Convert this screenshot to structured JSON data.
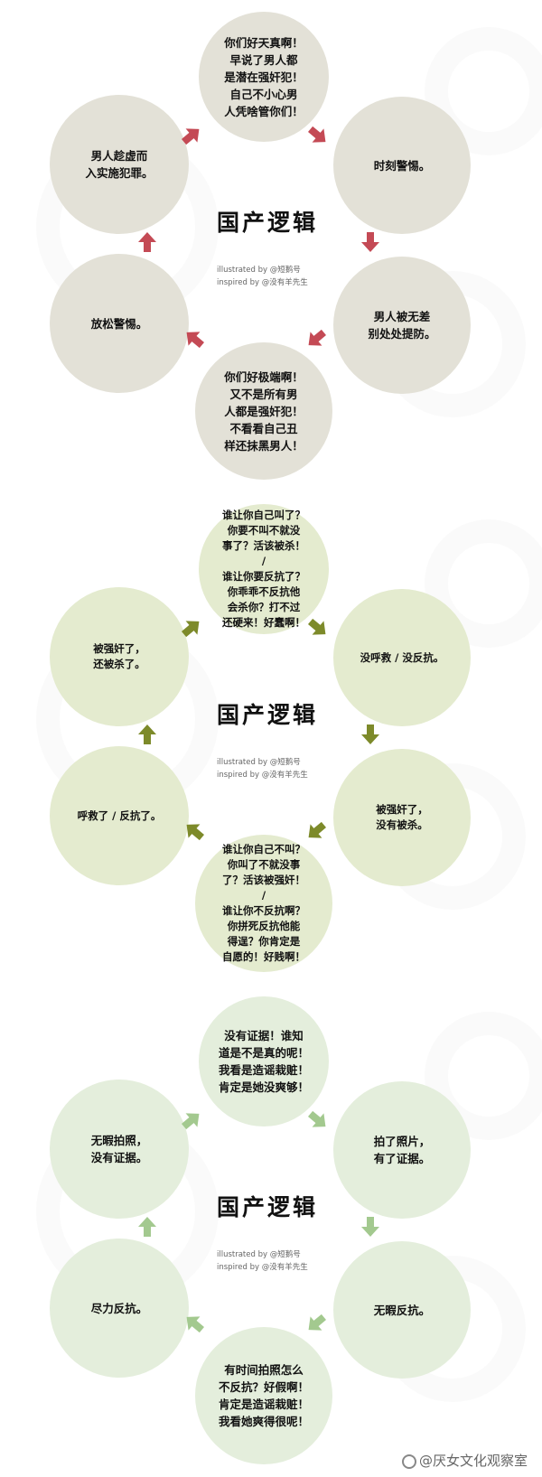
{
  "panels": [
    {
      "title": "国产逻辑",
      "credit_line1": "illustrated by    @短鹅号",
      "credit_line2": "inspired by @没有羊先生",
      "circle_color": "#e3e1d7",
      "arrow_color": "#c44a55",
      "nodes": {
        "top": "你们好天真啊！\n早说了男人都\n是潜在强奸犯！\n自己不小心男\n人凭啥管你们！",
        "right_upper": "时刻警惕。",
        "right_lower": "男人被无差\n别处处提防。",
        "bottom": "你们好极端啊！\n又不是所有男\n人都是强奸犯！\n不看看自己丑\n样还抹黑男人！",
        "left_lower": "放松警惕。",
        "left_upper": "男人趁虚而\n入实施犯罪。"
      }
    },
    {
      "title": "国产逻辑",
      "credit_line1": "illustrated by    @短鹅号",
      "credit_line2": "inspired by @没有羊先生",
      "circle_color": "#e4ebcf",
      "arrow_color": "#7d8a2a",
      "nodes": {
        "top": "谁让你自己叫了？\n你要不叫不就没\n事了？活该被杀！\n/\n谁让你要反抗了？\n你乖乖不反抗他\n会杀你？打不过\n还硬来！好蠢啊！",
        "right_upper": "没呼救 / 没反抗。",
        "right_lower": "被强奸了，\n没有被杀。",
        "bottom": "谁让你自己不叫？\n你叫了不就没事\n了？活该被强奸！\n/\n谁让你不反抗啊？\n你拼死反抗他能\n得逞？你肯定是\n自愿的！好贱啊！",
        "left_lower": "呼救了 / 反抗了。",
        "left_upper": "被强奸了，\n还被杀了。"
      }
    },
    {
      "title": "国产逻辑",
      "credit_line1": "illustrated by    @短鹅号",
      "credit_line2": "inspired by @没有羊先生",
      "circle_color": "#e4eedc",
      "arrow_color": "#a3c98f",
      "nodes": {
        "top": "没有证据！谁知\n道是不是真的呢！\n我看是造谣栽赃！\n肯定是她没爽够！",
        "right_upper": "拍了照片，\n有了证据。",
        "right_lower": "无暇反抗。",
        "bottom": "有时间拍照怎么\n不反抗？好假啊！\n肯定是造谣栽赃！\n我看她爽得很呢！",
        "left_lower": "尽力反抗。",
        "left_upper": "无暇拍照，\n没有证据。"
      }
    }
  ],
  "watermark": "@厌女文化观察室"
}
